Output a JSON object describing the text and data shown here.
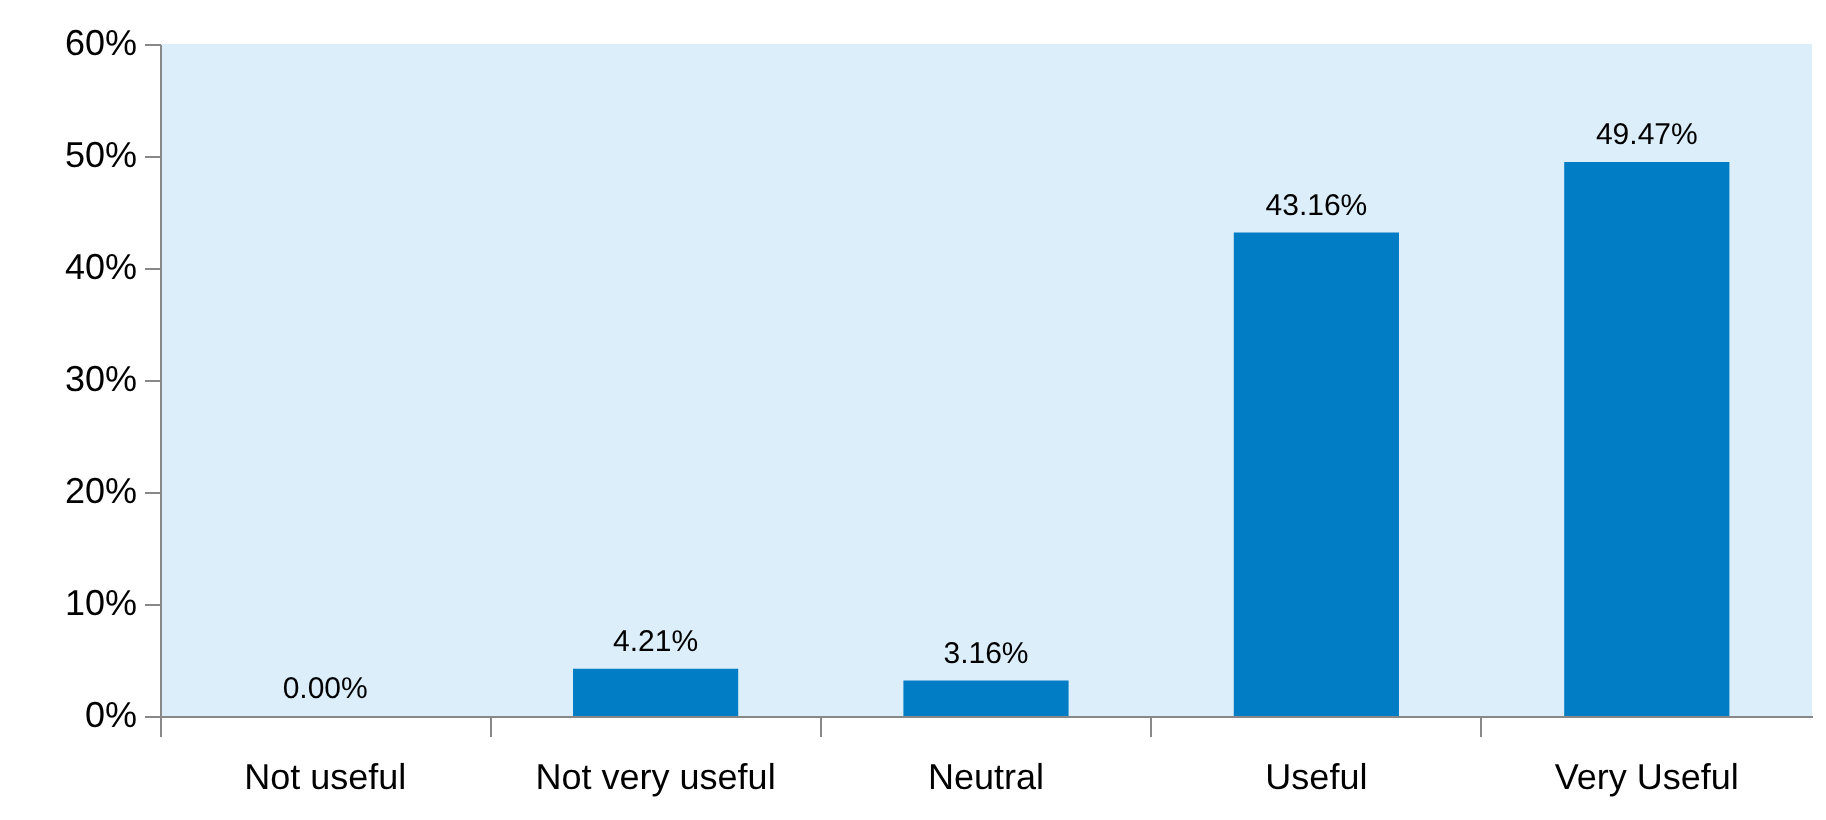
{
  "chart_data": {
    "type": "bar",
    "categories": [
      "Not useful",
      "Not very useful",
      "Neutral",
      "Useful",
      "Very Useful"
    ],
    "values": [
      0,
      4.21,
      3.16,
      43.16,
      49.47
    ],
    "value_labels": [
      "0.00%",
      "4.21%",
      "3.16%",
      "43.16%",
      "49.47%"
    ],
    "color": "#007dc5",
    "ylim": [
      0,
      60
    ],
    "yticks": [
      {
        "value": 0,
        "label": "0%"
      },
      {
        "value": 10,
        "label": "10%"
      },
      {
        "value": 20,
        "label": "20%"
      },
      {
        "value": 30,
        "label": "30%"
      },
      {
        "value": 40,
        "label": "40%"
      },
      {
        "value": 50,
        "label": "50%"
      },
      {
        "value": 60,
        "label": "60%"
      }
    ],
    "grid": false
  }
}
